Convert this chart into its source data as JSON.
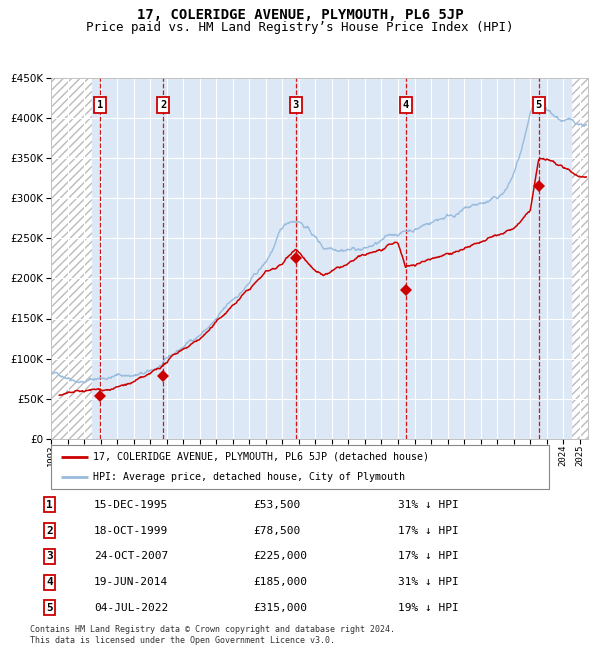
{
  "title": "17, COLERIDGE AVENUE, PLYMOUTH, PL6 5JP",
  "subtitle": "Price paid vs. HM Land Registry’s House Price Index (HPI)",
  "ylim": [
    0,
    450000
  ],
  "yticks": [
    0,
    50000,
    100000,
    150000,
    200000,
    250000,
    300000,
    350000,
    400000,
    450000
  ],
  "xlim_start": 1993.0,
  "xlim_end": 2025.5,
  "hatch_left_end": 1995.5,
  "hatch_right_start": 2024.5,
  "xticks": [
    1993,
    1994,
    1995,
    1996,
    1997,
    1998,
    1999,
    2000,
    2001,
    2002,
    2003,
    2004,
    2005,
    2006,
    2007,
    2008,
    2009,
    2010,
    2011,
    2012,
    2013,
    2014,
    2015,
    2016,
    2017,
    2018,
    2019,
    2020,
    2021,
    2022,
    2023,
    2024,
    2025
  ],
  "sale_dates_x": [
    1995.96,
    1999.8,
    2007.81,
    2014.47,
    2022.51
  ],
  "sale_prices_y": [
    53500,
    78500,
    225000,
    185000,
    315000
  ],
  "sale_labels": [
    "1",
    "2",
    "3",
    "4",
    "5"
  ],
  "red_line_color": "#cc0000",
  "blue_line_color": "#99bbdd",
  "sale_marker_color": "#cc0000",
  "dashed_line_color": "#cc0000",
  "background_plot": "#dce8f5",
  "legend_label_red": "17, COLERIDGE AVENUE, PLYMOUTH, PL6 5JP (detached house)",
  "legend_label_blue": "HPI: Average price, detached house, City of Plymouth",
  "table_data": [
    [
      "1",
      "15-DEC-1995",
      "£53,500",
      "31% ↓ HPI"
    ],
    [
      "2",
      "18-OCT-1999",
      "£78,500",
      "17% ↓ HPI"
    ],
    [
      "3",
      "24-OCT-2007",
      "£225,000",
      "17% ↓ HPI"
    ],
    [
      "4",
      "19-JUN-2014",
      "£185,000",
      "31% ↓ HPI"
    ],
    [
      "5",
      "04-JUL-2022",
      "£315,000",
      "19% ↓ HPI"
    ]
  ],
  "footnote1": "Contains HM Land Registry data © Crown copyright and database right 2024.",
  "footnote2": "This data is licensed under the Open Government Licence v3.0.",
  "title_fontsize": 10,
  "subtitle_fontsize": 9
}
